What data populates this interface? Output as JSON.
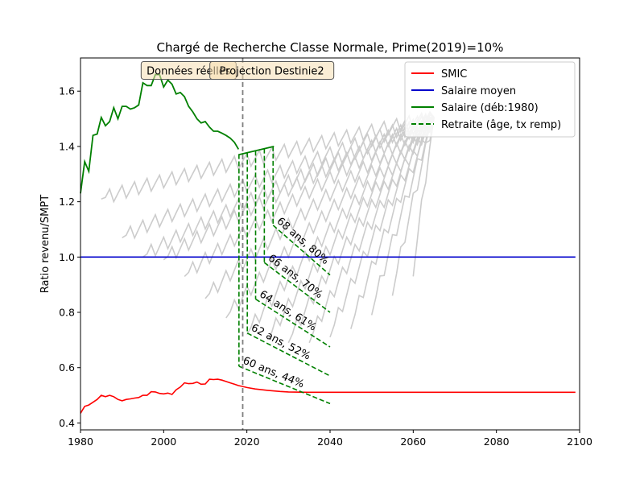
{
  "chart_data": {
    "type": "line",
    "title": "Chargé de Recherche Classe Normale, Prime(2019)=10%",
    "xlabel": "",
    "ylabel": "Ratio revenu/SMPT",
    "xlim": [
      1980,
      2100
    ],
    "ylim": [
      0.375,
      1.72
    ],
    "xticks": [
      1980,
      2000,
      2020,
      2040,
      2060,
      2080,
      2100
    ],
    "yticks": [
      0.4,
      0.6,
      0.8,
      1.0,
      1.2,
      1.4,
      1.6
    ],
    "grid": false,
    "legend_position": "top-right",
    "vline_year": 2019,
    "boxes": [
      {
        "text": "Données réelles",
        "x": 2006,
        "y": 1.675
      },
      {
        "text": "Projection Destinie2",
        "x": 2026,
        "y": 1.675
      }
    ],
    "legend": [
      {
        "label": "SMIC",
        "color": "#ff0000",
        "style": "solid"
      },
      {
        "label": "Salaire moyen",
        "color": "#0000cc",
        "style": "solid"
      },
      {
        "label": "Salaire (déb:1980)",
        "color": "#008000",
        "style": "solid"
      },
      {
        "label": "Retraite (âge, tx remp)",
        "color": "#008000",
        "style": "dashed"
      }
    ],
    "series": [
      {
        "name": "SMIC",
        "color": "#ff0000",
        "x": [
          1980,
          1981,
          1982,
          1983,
          1984,
          1985,
          1986,
          1987,
          1988,
          1989,
          1990,
          1991,
          1992,
          1993,
          1994,
          1995,
          1996,
          1997,
          1998,
          1999,
          2000,
          2001,
          2002,
          2003,
          2004,
          2005,
          2006,
          2007,
          2008,
          2009,
          2010,
          2011,
          2012,
          2013,
          2014,
          2015,
          2016,
          2017,
          2018,
          2019,
          2020,
          2022,
          2025,
          2028,
          2030,
          2035,
          2040,
          2060,
          2080,
          2099
        ],
        "y": [
          0.435,
          0.46,
          0.465,
          0.475,
          0.485,
          0.5,
          0.495,
          0.5,
          0.495,
          0.485,
          0.48,
          0.485,
          0.487,
          0.49,
          0.492,
          0.5,
          0.5,
          0.513,
          0.512,
          0.507,
          0.505,
          0.508,
          0.503,
          0.52,
          0.53,
          0.545,
          0.542,
          0.543,
          0.548,
          0.54,
          0.541,
          0.558,
          0.557,
          0.558,
          0.555,
          0.55,
          0.545,
          0.54,
          0.535,
          0.532,
          0.528,
          0.523,
          0.518,
          0.514,
          0.512,
          0.511,
          0.511,
          0.511,
          0.511,
          0.511
        ]
      },
      {
        "name": "Salaire moyen",
        "color": "#0000cc",
        "x": [
          1980,
          2099
        ],
        "y": [
          1.0,
          1.0
        ]
      },
      {
        "name": "Salaire (déb:1980)",
        "color": "#008000",
        "x": [
          1980,
          1981,
          1982,
          1983,
          1984,
          1985,
          1986,
          1987,
          1988,
          1989,
          1990,
          1991,
          1992,
          1993,
          1994,
          1995,
          1996,
          1997,
          1998,
          1999,
          2000,
          2001,
          2002,
          2003,
          2004,
          2005,
          2006,
          2007,
          2008,
          2009,
          2010,
          2011,
          2012,
          2013,
          2014,
          2015,
          2016,
          2017,
          2018
        ],
        "y": [
          1.23,
          1.345,
          1.31,
          1.44,
          1.445,
          1.505,
          1.475,
          1.49,
          1.54,
          1.5,
          1.545,
          1.545,
          1.535,
          1.54,
          1.55,
          1.63,
          1.62,
          1.62,
          1.66,
          1.66,
          1.615,
          1.64,
          1.625,
          1.59,
          1.595,
          1.58,
          1.545,
          1.525,
          1.5,
          1.485,
          1.49,
          1.47,
          1.455,
          1.455,
          1.448,
          1.44,
          1.43,
          1.415,
          1.39
        ]
      },
      {
        "name": "",
        "color": "#008000",
        "x": [
          2018,
          2026.5
        ],
        "y": [
          1.37,
          1.4
        ]
      }
    ],
    "ghost_cohorts": {
      "color": "#cccccc",
      "starts": [
        {
          "x": 1985,
          "y": 1.21
        },
        {
          "x": 1990,
          "y": 1.07
        },
        {
          "x": 1995,
          "y": 1.0
        },
        {
          "x": 2000,
          "y": 0.99
        },
        {
          "x": 2005,
          "y": 0.93
        },
        {
          "x": 2010,
          "y": 0.85
        },
        {
          "x": 2015,
          "y": 0.78
        },
        {
          "x": 2020,
          "y": 0.72
        },
        {
          "x": 2025,
          "y": 0.7
        },
        {
          "x": 2030,
          "y": 0.69
        },
        {
          "x": 2035,
          "y": 0.69
        },
        {
          "x": 2040,
          "y": 0.71
        },
        {
          "x": 2045,
          "y": 0.74
        },
        {
          "x": 2050,
          "y": 0.79
        },
        {
          "x": 2055,
          "y": 0.86
        },
        {
          "x": 2060,
          "y": 0.93
        }
      ],
      "end_year": 2065,
      "end_value": 1.505
    },
    "retirement": [
      {
        "label": "60 ans, 44%",
        "age": 60,
        "rate": 0.44,
        "year_start": 2018.1,
        "drop_from": 1.372,
        "pension_start": 0.605,
        "year_end": 2040,
        "pension_end": 0.47
      },
      {
        "label": "62 ans, 52%",
        "age": 62,
        "rate": 0.52,
        "year_start": 2020.1,
        "drop_from": 1.378,
        "pension_start": 0.725,
        "year_end": 2040,
        "pension_end": 0.57
      },
      {
        "label": "64 ans, 61%",
        "age": 64,
        "rate": 0.61,
        "year_start": 2022.1,
        "drop_from": 1.384,
        "pension_start": 0.848,
        "year_end": 2040,
        "pension_end": 0.675
      },
      {
        "label": "66 ans, 70%",
        "age": 66,
        "rate": 0.7,
        "year_start": 2024.2,
        "drop_from": 1.392,
        "pension_start": 0.98,
        "year_end": 2040,
        "pension_end": 0.8
      },
      {
        "label": "68 ans, 80%",
        "age": 68,
        "rate": 0.8,
        "year_start": 2026.3,
        "drop_from": 1.4,
        "pension_start": 1.115,
        "year_end": 2040,
        "pension_end": 0.935
      }
    ]
  }
}
